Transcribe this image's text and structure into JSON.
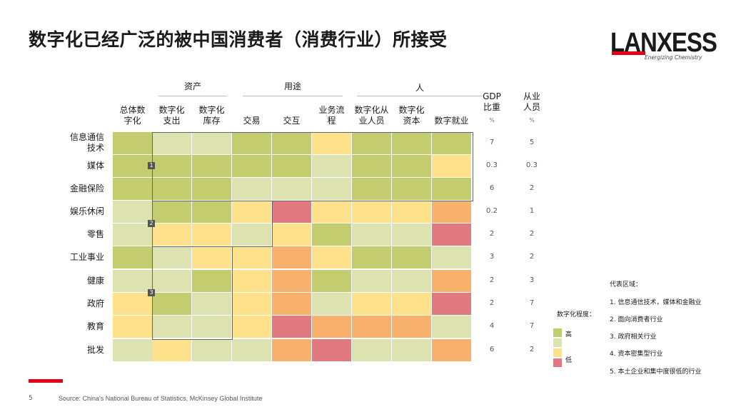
{
  "title": "数字化已经广泛的被中国消费者（消费行业）所接受",
  "logo": {
    "name": "LANXESS",
    "tagline": "Energizing Chemistry"
  },
  "groups": {
    "assets": "资产",
    "usage": "用途",
    "people": "人"
  },
  "columns": [
    "总体数字化",
    "数字化支出",
    "数字化库存",
    "交易",
    "交互",
    "业务流程",
    "数字化从业人员",
    "数字化资本",
    "数字就业"
  ],
  "column_labels": [
    [
      "总体数",
      "字化"
    ],
    [
      "数字化",
      "支出"
    ],
    [
      "数字化",
      "库存"
    ],
    [
      "交易"
    ],
    [
      "交互"
    ],
    [
      "业务流",
      "程"
    ],
    [
      "数字化从",
      "业人员"
    ],
    [
      "数字化",
      "资本"
    ],
    [
      "数字就业"
    ]
  ],
  "gdp_header": [
    "GDP",
    "比重"
  ],
  "emp_header": [
    "从业",
    "人员"
  ],
  "pct_symbol": "%",
  "rows": [
    {
      "label": [
        "信息通信",
        "技术"
      ],
      "gdp": "7",
      "emp": "5",
      "levels": [
        1,
        2,
        2,
        1,
        1,
        3,
        1,
        1,
        1
      ]
    },
    {
      "label": [
        "媒体"
      ],
      "gdp": "0.3",
      "emp": "0.3",
      "levels": [
        1,
        1,
        1,
        1,
        1,
        2,
        1,
        1,
        3
      ]
    },
    {
      "label": [
        "金融保险"
      ],
      "gdp": "6",
      "emp": "2",
      "levels": [
        1,
        1,
        1,
        2,
        2,
        2,
        1,
        1,
        1
      ]
    },
    {
      "label": [
        "娱乐休闲"
      ],
      "gdp": "0.2",
      "emp": "1",
      "levels": [
        2,
        1,
        1,
        3,
        5,
        3,
        3,
        3,
        4
      ]
    },
    {
      "label": [
        "零售"
      ],
      "gdp": "2",
      "emp": "2",
      "levels": [
        2,
        3,
        3,
        2,
        3,
        1,
        2,
        2,
        5
      ]
    },
    {
      "label": [
        "工业事业"
      ],
      "gdp": "3",
      "emp": "2",
      "levels": [
        1,
        2,
        3,
        3,
        4,
        3,
        1,
        1,
        2
      ]
    },
    {
      "label": [
        "健康"
      ],
      "gdp": "2",
      "emp": "3",
      "levels": [
        2,
        2,
        1,
        3,
        4,
        1,
        2,
        2,
        4
      ]
    },
    {
      "label": [
        "政府"
      ],
      "gdp": "2",
      "emp": "7",
      "levels": [
        3,
        1,
        2,
        3,
        4,
        2,
        3,
        3,
        5
      ]
    },
    {
      "label": [
        "教育"
      ],
      "gdp": "4",
      "emp": "7",
      "levels": [
        3,
        2,
        2,
        3,
        5,
        4,
        4,
        4,
        2
      ]
    },
    {
      "label": [
        "批发"
      ],
      "gdp": "6",
      "emp": "2",
      "levels": [
        2,
        3,
        2,
        2,
        4,
        5,
        2,
        2,
        4
      ]
    }
  ],
  "colors": {
    "level_1": "#c3cc6e",
    "level_2": "#dde3b0",
    "level_3": "#fde28b",
    "level_4": "#f8b16d",
    "level_5": "#e17a80",
    "brand_red": "#e3001b"
  },
  "region_badges": [
    "1",
    "2",
    "3"
  ],
  "legend": {
    "title": "数字化程度：",
    "high": "高",
    "low": "低"
  },
  "regions_legend": {
    "title": "代表区域：",
    "items": [
      "1. 信息通信技术，媒体和金融业",
      "2. 面向消费者行业",
      "3. 政府相关行业",
      "4. 资本密集型行业",
      "5. 本土企业和集中度很低的行业"
    ]
  },
  "footer": {
    "page_number": "5",
    "source": "Source: China's National Bureau of Statistics, McKinsey Global Institute"
  }
}
